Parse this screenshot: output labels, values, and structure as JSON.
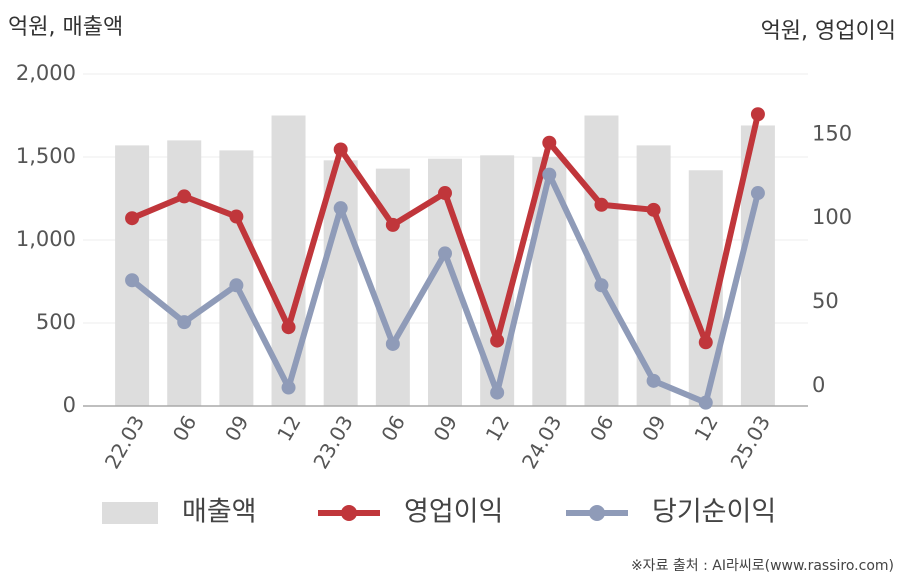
{
  "chart_data": {
    "type": "bar",
    "ylabel": "억원, 매출액",
    "y2label": "억원, 영업이익",
    "source": "※자료 출처 : AI라씨로(www.rassiro.com)",
    "categories": [
      "22.03",
      "06",
      "09",
      "12",
      "23.03",
      "06",
      "09",
      "12",
      "24.03",
      "06",
      "09",
      "12",
      "25.03"
    ],
    "series": [
      {
        "name": "매출액",
        "type": "bar",
        "color": "#dddddd",
        "values": [
          1570,
          1600,
          1540,
          1750,
          1480,
          1430,
          1490,
          1510,
          1500,
          1750,
          1570,
          1420,
          1690
        ]
      },
      {
        "name": "영업이익",
        "type": "line",
        "axis": "y2",
        "color": "#c0363b",
        "values": [
          100,
          113,
          101,
          35,
          141,
          96,
          115,
          27,
          145,
          108,
          105,
          26,
          162
        ]
      },
      {
        "name": "당기순이익",
        "type": "line",
        "axis": "y2",
        "color": "#8f9bb8",
        "values": [
          63,
          38,
          60,
          -1,
          106,
          25,
          79,
          -4,
          126,
          60,
          3,
          -10,
          115
        ]
      }
    ],
    "ylim": [
      0,
      2000
    ],
    "yticks": [
      0,
      500,
      {
        "value": 1000,
        "label": "1,000"
      },
      {
        "value": 1500,
        "label": "1,500"
      },
      {
        "value": 2000,
        "label": "2,000"
      }
    ],
    "y2lim": [
      -12,
      186
    ],
    "y2ticks": [
      0,
      50,
      100,
      150
    ],
    "grid": true
  }
}
